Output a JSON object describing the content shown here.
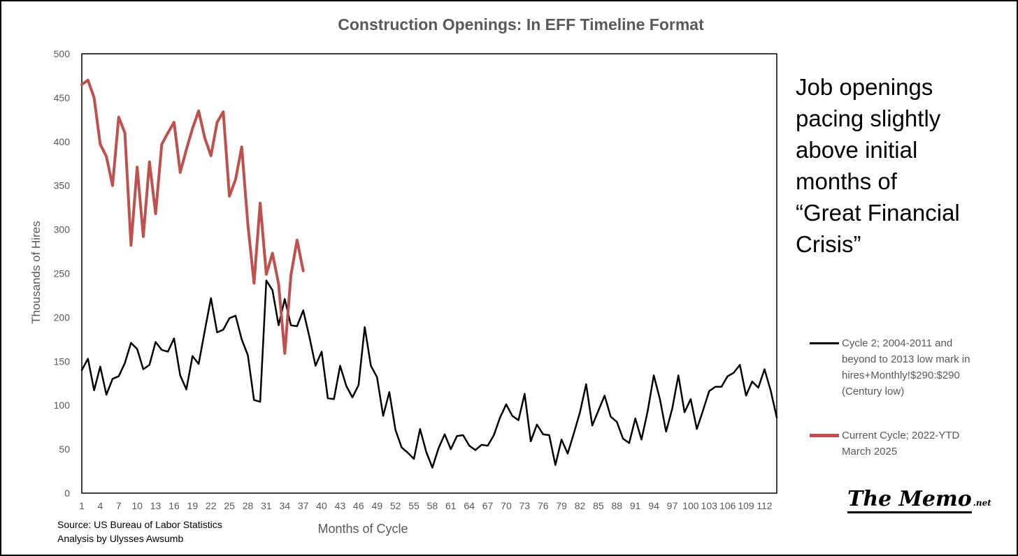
{
  "chart_data": {
    "type": "line",
    "title": "Construction Openings: In EFF Timeline Format",
    "xlabel": "Months of Cycle",
    "ylabel": "Thousands of Hires",
    "ylim": [
      0,
      500
    ],
    "xlim": [
      1,
      114
    ],
    "y_ticks": [
      0,
      50,
      100,
      150,
      200,
      250,
      300,
      350,
      400,
      450,
      500
    ],
    "x_ticks": [
      1,
      4,
      7,
      10,
      13,
      16,
      19,
      22,
      25,
      28,
      31,
      34,
      37,
      40,
      43,
      46,
      49,
      52,
      55,
      58,
      61,
      64,
      67,
      70,
      73,
      76,
      79,
      82,
      85,
      88,
      91,
      94,
      97,
      100,
      103,
      106,
      109,
      112
    ],
    "grid": false,
    "legend_position": "right",
    "series": [
      {
        "name": "Cycle 2; 2004-2011 and beyond to 2013 low mark in hires+Monthly!$290:$290 (Century low)",
        "color": "#000000",
        "values": [
          140,
          153,
          117,
          144,
          112,
          130,
          133,
          148,
          171,
          164,
          141,
          146,
          172,
          163,
          161,
          176,
          134,
          118,
          156,
          147,
          185,
          222,
          183,
          186,
          199,
          202,
          175,
          157,
          106,
          104,
          242,
          231,
          191,
          221,
          191,
          190,
          208,
          178,
          145,
          161,
          108,
          107,
          145,
          122,
          109,
          123,
          189,
          145,
          132,
          88,
          115,
          72,
          52,
          46,
          39,
          73,
          47,
          29,
          51,
          67,
          50,
          65,
          66,
          54,
          49,
          55,
          54,
          66,
          86,
          101,
          88,
          83,
          113,
          59,
          78,
          67,
          66,
          32,
          61,
          45,
          68,
          92,
          124,
          77,
          94,
          111,
          87,
          81,
          62,
          57,
          85,
          61,
          93,
          134,
          107,
          70,
          96,
          134,
          92,
          107,
          73,
          94,
          116,
          121,
          121,
          133,
          137,
          146,
          111,
          127,
          120,
          141,
          117,
          86
        ]
      },
      {
        "name": "Current Cycle; 2022-YTD March 2025",
        "color": "#c0504d",
        "values": [
          465,
          470,
          450,
          397,
          383,
          350,
          428,
          410,
          282,
          371,
          292,
          377,
          318,
          397,
          410,
          422,
          365,
          391,
          415,
          435,
          404,
          384,
          422,
          434,
          338,
          357,
          394,
          306,
          239,
          330,
          249,
          273,
          238,
          159,
          248,
          288,
          253
        ]
      }
    ]
  },
  "annotation": {
    "lines": [
      "Job openings",
      "pacing slightly",
      "above initial",
      "months of",
      "“Great Financial",
      "Crisis”"
    ]
  },
  "source": {
    "line1": "Source: US Bureau of Labor Statistics",
    "line2": "Analysis by Ulysses Awsumb"
  },
  "logo": {
    "main": "The Memo",
    "suffix": ".net"
  },
  "legend": {
    "items": [
      {
        "lines": [
          "Cycle 2; 2004-2011 and",
          "beyond to 2013 low mark in",
          "hires+Monthly!$290:$290",
          "(Century low)"
        ]
      },
      {
        "lines": [
          "Current Cycle; 2022-YTD",
          "March 2025"
        ]
      }
    ]
  }
}
